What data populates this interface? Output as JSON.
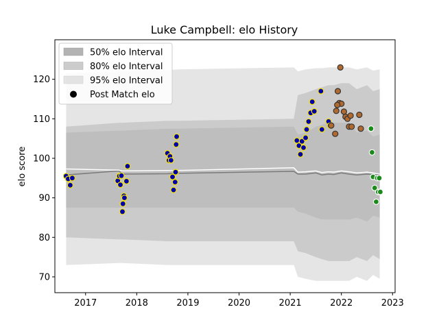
{
  "chart_data": {
    "type": "scatter",
    "title": "Luke Campbell: elo History",
    "xlabel": "",
    "ylabel": "elo score",
    "xlim": [
      2016.4,
      2023.05
    ],
    "ylim": [
      66,
      130
    ],
    "x_ticks": [
      2017,
      2018,
      2019,
      2020,
      2021,
      2022,
      2023
    ],
    "y_ticks": [
      70,
      80,
      90,
      100,
      110,
      120
    ],
    "legend_position": "top-left",
    "legend": [
      {
        "label": "50% elo Interval",
        "kind": "band",
        "color": "#999999",
        "opacity": 0.75
      },
      {
        "label": "80% elo Interval",
        "kind": "band",
        "color": "#aaaaaa",
        "opacity": 0.6
      },
      {
        "label": "95% elo Interval",
        "kind": "band",
        "color": "#cccccc",
        "opacity": 0.5
      },
      {
        "label": "Post Match elo",
        "kind": "marker",
        "color": "#000000"
      }
    ],
    "bands": {
      "x": [
        2016.62,
        2017.65,
        2017.72,
        2018.6,
        2018.8,
        2021.07,
        2021.15,
        2021.3,
        2021.5,
        2021.62,
        2021.75,
        2021.85,
        2022.0,
        2022.15,
        2022.3,
        2022.5,
        2022.62,
        2022.75
      ],
      "p95_upper": [
        121.5,
        122.0,
        122.0,
        122.3,
        122.5,
        123.0,
        122.0,
        122.5,
        122.8,
        122.8,
        123.0,
        123.0,
        123.0,
        123.0,
        122.5,
        123.0,
        122.2,
        122.5
      ],
      "p80_upper": [
        108.0,
        109.0,
        109.0,
        109.5,
        109.5,
        110.0,
        116.0,
        116.5,
        117.5,
        118.0,
        118.5,
        118.5,
        119.0,
        119.0,
        117.5,
        118.5,
        117.0,
        117.5
      ],
      "p50_upper": [
        106.5,
        107.0,
        107.0,
        107.5,
        107.5,
        108.0,
        106.0,
        106.5,
        108.0,
        108.5,
        109.0,
        109.0,
        109.0,
        109.0,
        106.5,
        107.0,
        105.5,
        106.0
      ],
      "mean": [
        95.8,
        96.8,
        96.0,
        96.1,
        96.2,
        96.7,
        96.0,
        96.0,
        96.3,
        95.8,
        96.0,
        95.9,
        96.3,
        96.0,
        95.8,
        96.0,
        95.9,
        95.8
      ],
      "median": [
        97.3,
        97.0,
        96.8,
        96.9,
        96.9,
        97.6,
        96.5,
        96.6,
        96.8,
        96.4,
        96.6,
        96.5,
        96.8,
        96.6,
        96.3,
        96.5,
        96.3,
        96.0
      ],
      "p50_lower": [
        87.5,
        87.5,
        87.5,
        87.5,
        87.5,
        87.5,
        86.5,
        86.0,
        85.0,
        84.5,
        84.5,
        84.5,
        84.5,
        84.5,
        85.0,
        84.0,
        85.5,
        85.0
      ],
      "p80_lower": [
        80.0,
        79.5,
        79.5,
        79.0,
        79.0,
        79.0,
        76.5,
        76.0,
        75.0,
        74.5,
        74.0,
        74.0,
        74.0,
        74.0,
        75.0,
        74.0,
        75.5,
        74.5
      ],
      "p95_lower": [
        73.0,
        73.5,
        73.5,
        73.0,
        73.0,
        73.0,
        70.0,
        69.5,
        69.0,
        69.0,
        69.0,
        69.0,
        69.0,
        69.0,
        70.0,
        69.0,
        70.5,
        69.5
      ]
    },
    "series": [
      {
        "name": "Post Match elo",
        "fill": "#0000aa",
        "edge": "#f5e400",
        "x": [
          2016.62,
          2016.66,
          2016.7,
          2016.74,
          2017.63,
          2017.66,
          2017.68,
          2017.7,
          2017.73,
          2017.75,
          2017.72,
          2017.76,
          2017.8,
          2017.82,
          2018.6,
          2018.63,
          2018.65,
          2018.67,
          2018.7,
          2018.72,
          2018.75,
          2018.76,
          2018.77
        ],
        "y": [
          95.5,
          94.8,
          93.2,
          95.0,
          94.3,
          95.5,
          93.3,
          95.6,
          88.5,
          90.5,
          86.5,
          90.0,
          94.2,
          98.0,
          101.3,
          99.5,
          100.5,
          99.5,
          95.3,
          92.0,
          94.0,
          96.5,
          103.5
        ]
      },
      {
        "name": "",
        "fill": "#0000aa",
        "edge": "#f5e400",
        "x": [
          2018.78,
          2021.13,
          2021.17,
          2021.2,
          2021.23,
          2021.26,
          2021.3,
          2021.32,
          2021.36,
          2021.4,
          2021.43,
          2021.47,
          2021.6,
          2021.62,
          2021.75,
          2021.78
        ],
        "y": [
          105.5,
          104.5,
          103.2,
          101.0,
          104.3,
          102.7,
          105.2,
          107.3,
          109.3,
          111.5,
          114.3,
          111.9,
          117.0,
          107.3,
          109.3,
          108.3
        ]
      },
      {
        "name": "",
        "fill": "#b06a30",
        "edge": "#333333",
        "x": [
          2021.8,
          2021.9,
          2021.93,
          2021.96,
          2021.98,
          2022.0,
          2022.05,
          2022.08,
          2022.12,
          2022.15,
          2022.18,
          2022.2,
          2022.35,
          2022.38,
          2021.88,
          2021.92
        ],
        "y": [
          108.3,
          112.0,
          117.0,
          114.0,
          123.0,
          113.8,
          111.8,
          110.5,
          110.0,
          108.0,
          110.8,
          108.0,
          111.0,
          107.5,
          106.2,
          113.5
        ]
      },
      {
        "name": "",
        "fill": "#1a8a1a",
        "edge": "#ffffff",
        "x": [
          2022.58,
          2022.6,
          2022.62,
          2022.65,
          2022.68,
          2022.7,
          2022.72,
          2022.74,
          2022.76
        ],
        "y": [
          107.5,
          101.5,
          95.3,
          92.5,
          89.0,
          95.0,
          91.5,
          95.0,
          91.5
        ]
      }
    ]
  }
}
